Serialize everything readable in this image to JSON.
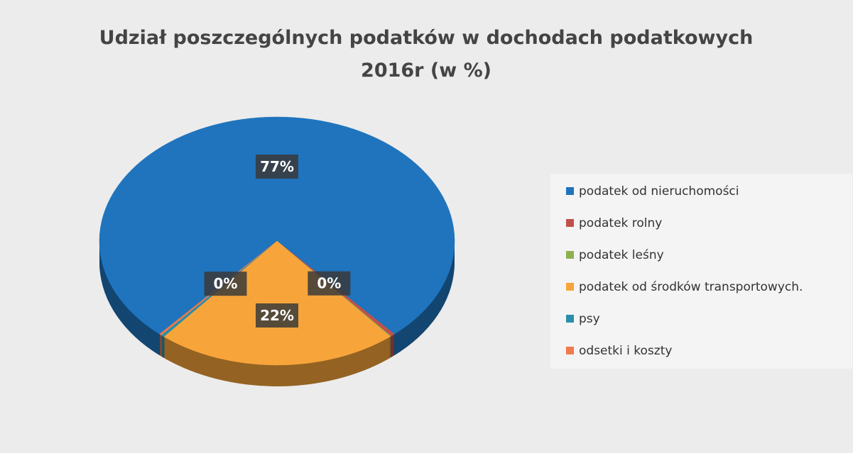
{
  "chart_data": {
    "type": "pie",
    "title": "Udział poszczególnych podatków w dochodach podatkowych",
    "subtitle": "2016r (w %)",
    "categories": [
      "podatek od nieruchomości",
      "podatek rolny",
      "podatek leśny",
      "podatek od środków transportowych.",
      "psy",
      "odsetki i koszty"
    ],
    "values": [
      77,
      0.4,
      0.1,
      22,
      0.3,
      0.2
    ],
    "value_labels": [
      "77%",
      "0%",
      null,
      "22%",
      "0%",
      null
    ],
    "colors": [
      "#1f74bd",
      "#c0504d",
      "#8fb04f",
      "#f7a53a",
      "#2a8ea8",
      "#f07a4a"
    ],
    "legend": "right"
  }
}
